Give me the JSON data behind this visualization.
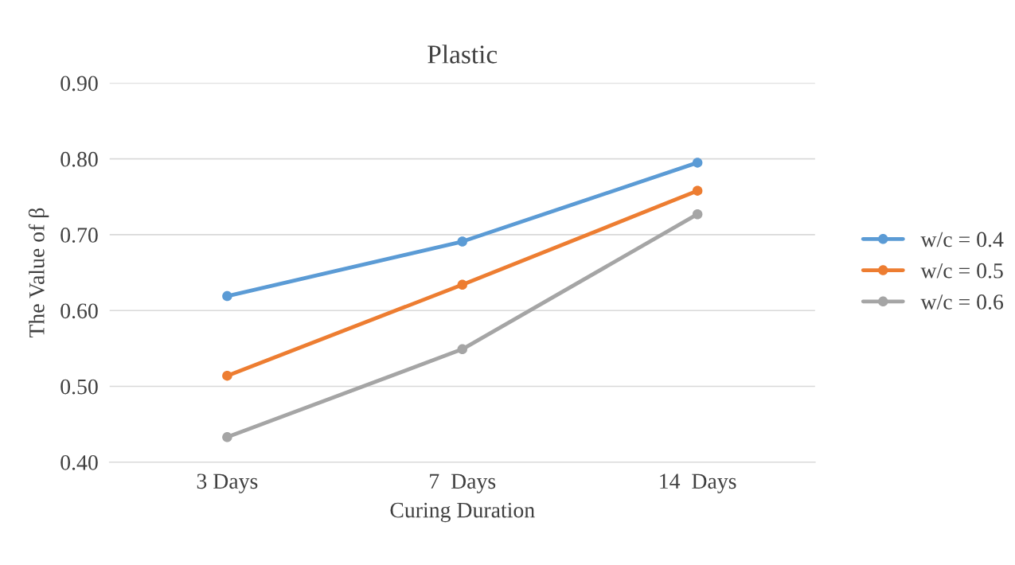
{
  "chart_data": {
    "type": "line",
    "title": "Plastic",
    "xlabel": "Curing Duration",
    "ylabel": "The Value of β",
    "categories": [
      "3 Days",
      "7  Days",
      "14  Days"
    ],
    "series": [
      {
        "name": "w/c = 0.4",
        "color": "#5b9bd5",
        "values": [
          0.619,
          0.691,
          0.795
        ]
      },
      {
        "name": "w/c = 0.5",
        "color": "#ed7d31",
        "values": [
          0.514,
          0.634,
          0.758
        ]
      },
      {
        "name": "w/c = 0.6",
        "color": "#a5a5a5",
        "values": [
          0.433,
          0.549,
          0.727
        ]
      }
    ],
    "ylim": [
      0.4,
      0.9
    ],
    "yticks": [
      {
        "value": 0.4,
        "label": "0.40"
      },
      {
        "value": 0.5,
        "label": "0.50"
      },
      {
        "value": 0.6,
        "label": "0.60"
      },
      {
        "value": 0.7,
        "label": "0.70"
      },
      {
        "value": 0.8,
        "label": "0.80"
      },
      {
        "value": 0.9,
        "label": "0.90"
      }
    ],
    "grid": "y",
    "legend": "right",
    "marker": "circle",
    "line_style": "solid"
  }
}
